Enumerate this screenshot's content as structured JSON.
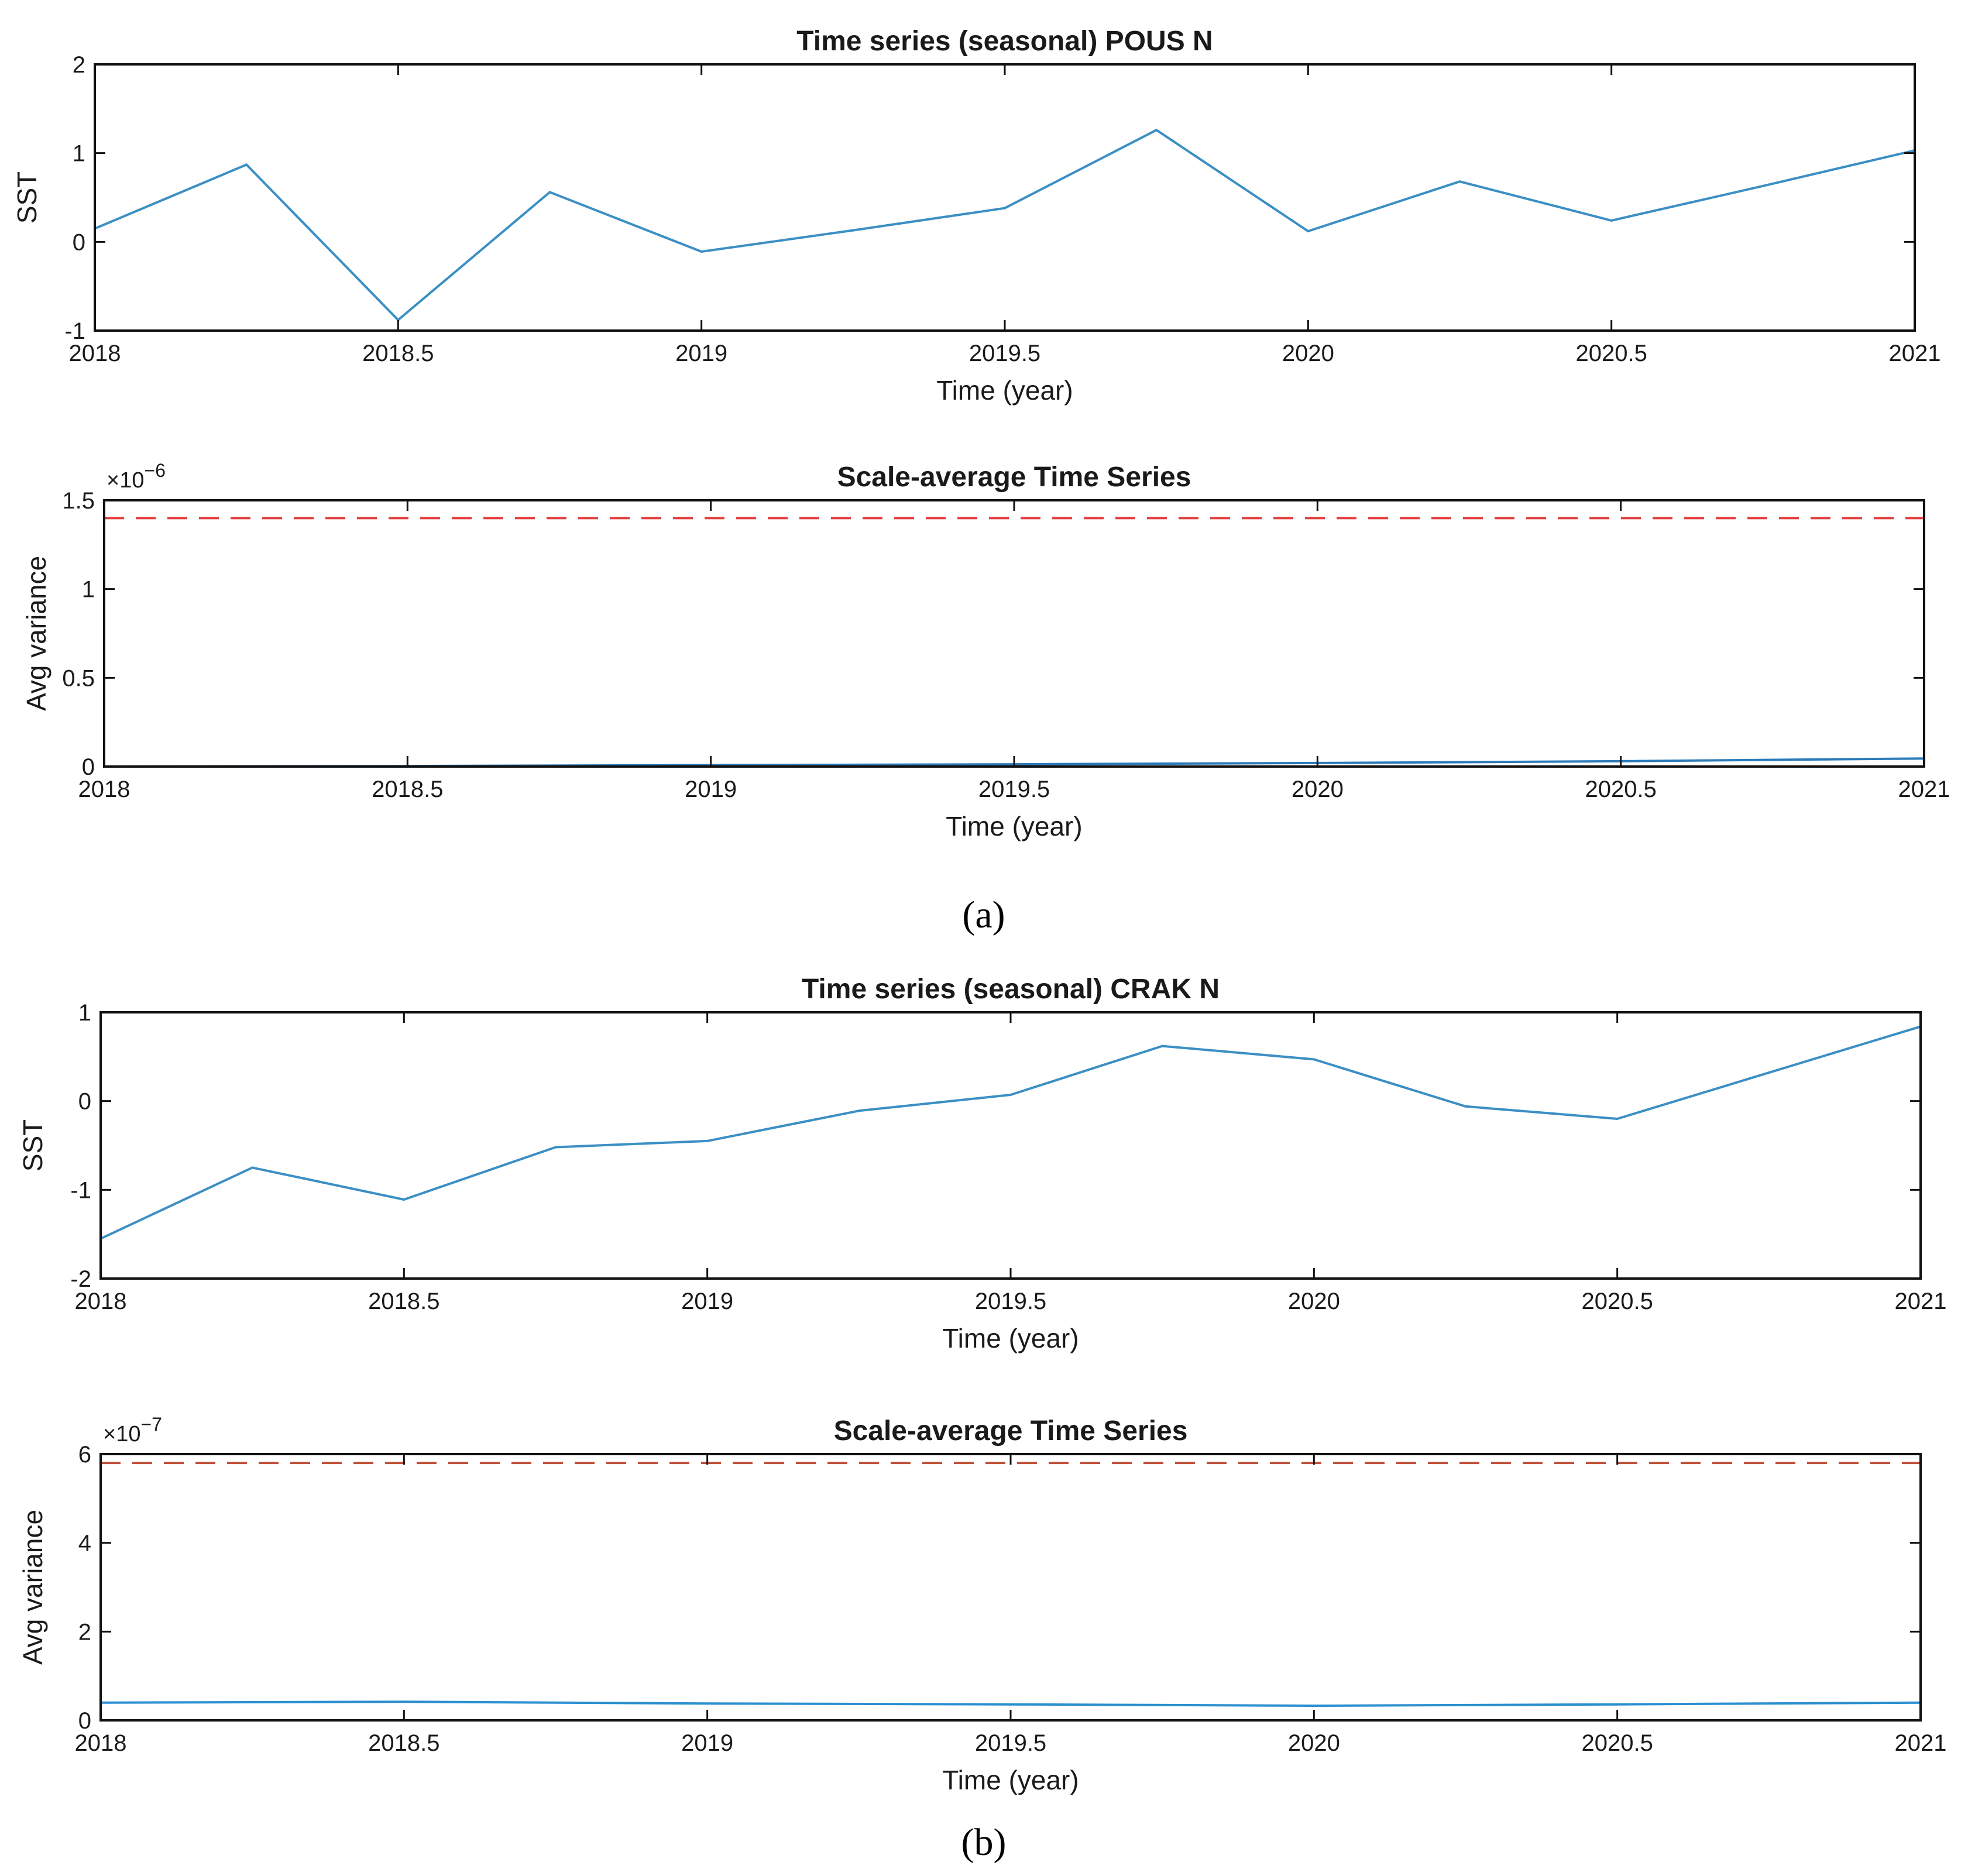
{
  "chart_data": [
    {
      "type": "line",
      "title": "Time series (seasonal) POUS N",
      "xlabel": "Time (year)",
      "ylabel": "SST",
      "xlim": [
        2018,
        2021
      ],
      "ylim": [
        -1,
        2
      ],
      "xticks": [
        2018,
        2018.5,
        2019,
        2019.5,
        2020,
        2020.5,
        2021
      ],
      "xtick_labels": [
        "2018",
        "2018.5",
        "2019",
        "2019.5",
        "2020",
        "2020.5",
        "2021"
      ],
      "yticks": [
        -1,
        0,
        1,
        2
      ],
      "ytick_labels": [
        "-1",
        "0",
        "1",
        "2"
      ],
      "exponent": "",
      "series": [
        {
          "name": "SST",
          "color": "#3b8fc4",
          "x": [
            2018,
            2018.25,
            2018.5,
            2018.75,
            2019,
            2019.25,
            2019.5,
            2019.75,
            2020,
            2020.25,
            2020.5,
            2020.75,
            2021
          ],
          "y": [
            0.15,
            0.87,
            -0.88,
            0.56,
            -0.11,
            0.13,
            0.38,
            1.26,
            0.12,
            0.68,
            0.24,
            0.63,
            1.03
          ]
        }
      ],
      "threshold": null
    },
    {
      "type": "line",
      "title": "Scale-average Time Series",
      "xlabel": "Time (year)",
      "ylabel": "Avg variance",
      "xlim": [
        2018,
        2021
      ],
      "ylim": [
        0,
        1.5
      ],
      "xticks": [
        2018,
        2018.5,
        2019,
        2019.5,
        2020,
        2020.5,
        2021
      ],
      "xtick_labels": [
        "2018",
        "2018.5",
        "2019",
        "2019.5",
        "2020",
        "2020.5",
        "2021"
      ],
      "yticks": [
        0,
        0.5,
        1,
        1.5
      ],
      "ytick_labels": [
        "0",
        "0.5",
        "1",
        "1.5"
      ],
      "exponent": "×10",
      "exponent_power": "−6",
      "series": [
        {
          "name": "Avg variance",
          "color": "#2b7bba",
          "x": [
            2018,
            2018.5,
            2019,
            2019.5,
            2020,
            2020.5,
            2021
          ],
          "y": [
            0.0,
            0.003,
            0.008,
            0.013,
            0.02,
            0.03,
            0.045
          ]
        }
      ],
      "threshold": {
        "value": 1.4,
        "color": "#e34040"
      }
    },
    {
      "type": "line",
      "title": "Time series (seasonal) CRAK N",
      "xlabel": "Time (year)",
      "ylabel": "SST",
      "xlim": [
        2018,
        2021
      ],
      "ylim": [
        -2,
        1
      ],
      "xticks": [
        2018,
        2018.5,
        2019,
        2019.5,
        2020,
        2020.5,
        2021
      ],
      "xtick_labels": [
        "2018",
        "2018.5",
        "2019",
        "2019.5",
        "2020",
        "2020.5",
        "2021"
      ],
      "yticks": [
        -2,
        -1,
        0,
        1
      ],
      "ytick_labels": [
        "-2",
        "-1",
        "0",
        "1"
      ],
      "exponent": "",
      "series": [
        {
          "name": "SST",
          "color": "#3b8fc4",
          "x": [
            2018,
            2018.25,
            2018.5,
            2018.75,
            2019,
            2019.25,
            2019.5,
            2019.75,
            2020,
            2020.25,
            2020.5,
            2020.75,
            2021
          ],
          "y": [
            -1.55,
            -0.75,
            -1.11,
            -0.52,
            -0.45,
            -0.11,
            0.07,
            0.62,
            0.47,
            -0.06,
            -0.2,
            0.32,
            0.84
          ]
        }
      ],
      "threshold": null
    },
    {
      "type": "line",
      "title": "Scale-average Time Series",
      "xlabel": "Time (year)",
      "ylabel": "Avg variance",
      "xlim": [
        2018,
        2021
      ],
      "ylim": [
        0,
        6
      ],
      "xticks": [
        2018,
        2018.5,
        2019,
        2019.5,
        2020,
        2020.5,
        2021
      ],
      "xtick_labels": [
        "2018",
        "2018.5",
        "2019",
        "2019.5",
        "2020",
        "2020.5",
        "2021"
      ],
      "yticks": [
        0,
        2,
        4,
        6
      ],
      "ytick_labels": [
        "0",
        "2",
        "4",
        "6"
      ],
      "exponent": "×10",
      "exponent_power": "−7",
      "series": [
        {
          "name": "Avg variance",
          "color": "#2b8fd0",
          "x": [
            2018,
            2018.5,
            2019,
            2019.5,
            2020,
            2020.5,
            2021
          ],
          "y": [
            0.4,
            0.42,
            0.38,
            0.36,
            0.33,
            0.36,
            0.4
          ]
        }
      ],
      "threshold": {
        "value": 5.8,
        "color": "#c0503a"
      }
    }
  ],
  "captions": [
    "(a)",
    "(b)"
  ]
}
